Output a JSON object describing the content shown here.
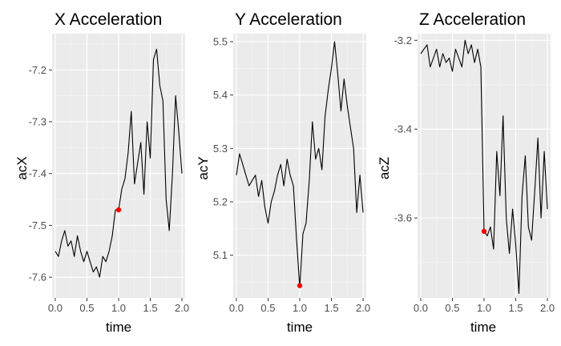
{
  "chart_data": [
    {
      "type": "line",
      "title": "X Acceleration",
      "xlabel": "time",
      "ylabel": "acX",
      "xlim": [
        -0.05,
        2.05
      ],
      "ylim": [
        -7.64,
        -7.13
      ],
      "xticks": [
        0.0,
        0.5,
        1.0,
        1.5,
        2.0
      ],
      "xtick_labels": [
        "0.0",
        "0.5",
        "1.0",
        "1.5",
        "2.0"
      ],
      "yticks": [
        -7.6,
        -7.5,
        -7.4,
        -7.3,
        -7.2
      ],
      "ytick_labels": [
        "-7.6",
        "-7.5",
        "-7.4",
        "-7.3",
        "-7.2"
      ],
      "grid": true,
      "line_color": "#000000",
      "highlight_color": "#ff0000",
      "x": [
        0.0,
        0.05,
        0.1,
        0.15,
        0.2,
        0.25,
        0.3,
        0.35,
        0.4,
        0.45,
        0.5,
        0.55,
        0.6,
        0.65,
        0.7,
        0.75,
        0.8,
        0.85,
        0.9,
        0.95,
        1.0,
        1.05,
        1.1,
        1.15,
        1.2,
        1.25,
        1.3,
        1.35,
        1.4,
        1.45,
        1.5,
        1.55,
        1.6,
        1.65,
        1.7,
        1.75,
        1.8,
        1.85,
        1.9,
        1.95,
        2.0
      ],
      "values": [
        -7.55,
        -7.56,
        -7.53,
        -7.51,
        -7.54,
        -7.53,
        -7.56,
        -7.52,
        -7.55,
        -7.57,
        -7.55,
        -7.57,
        -7.59,
        -7.58,
        -7.6,
        -7.56,
        -7.57,
        -7.55,
        -7.52,
        -7.47,
        -7.47,
        -7.43,
        -7.41,
        -7.36,
        -7.28,
        -7.42,
        -7.38,
        -7.34,
        -7.44,
        -7.3,
        -7.37,
        -7.18,
        -7.16,
        -7.23,
        -7.26,
        -7.45,
        -7.51,
        -7.4,
        -7.25,
        -7.32,
        -7.4
      ],
      "highlight": {
        "x": 1.0,
        "y": -7.47
      }
    },
    {
      "type": "line",
      "title": "Y Acceleration",
      "xlabel": "time",
      "ylabel": "acY",
      "xlim": [
        -0.05,
        2.05
      ],
      "ylim": [
        5.02,
        5.515
      ],
      "xticks": [
        0.0,
        0.5,
        1.0,
        1.5,
        2.0
      ],
      "xtick_labels": [
        "0.0",
        "0.5",
        "1.0",
        "1.5",
        "2.0"
      ],
      "yticks": [
        5.1,
        5.2,
        5.3,
        5.4,
        5.5
      ],
      "ytick_labels": [
        "5.1",
        "5.2",
        "5.3",
        "5.4",
        "5.5"
      ],
      "grid": true,
      "line_color": "#000000",
      "highlight_color": "#ff0000",
      "x": [
        0.0,
        0.05,
        0.1,
        0.15,
        0.2,
        0.25,
        0.3,
        0.35,
        0.4,
        0.45,
        0.5,
        0.55,
        0.6,
        0.65,
        0.7,
        0.75,
        0.8,
        0.85,
        0.9,
        0.95,
        1.0,
        1.05,
        1.1,
        1.15,
        1.2,
        1.25,
        1.3,
        1.35,
        1.4,
        1.45,
        1.5,
        1.55,
        1.6,
        1.65,
        1.7,
        1.75,
        1.8,
        1.85,
        1.9,
        1.95,
        2.0
      ],
      "values": [
        5.25,
        5.29,
        5.27,
        5.25,
        5.23,
        5.24,
        5.25,
        5.21,
        5.24,
        5.19,
        5.16,
        5.2,
        5.22,
        5.25,
        5.27,
        5.23,
        5.28,
        5.25,
        5.23,
        5.13,
        5.04,
        5.14,
        5.16,
        5.24,
        5.35,
        5.28,
        5.3,
        5.26,
        5.36,
        5.41,
        5.45,
        5.5,
        5.44,
        5.37,
        5.43,
        5.38,
        5.34,
        5.3,
        5.18,
        5.25,
        5.18
      ],
      "highlight": {
        "x": 1.0,
        "y": 5.043
      }
    },
    {
      "type": "line",
      "title": "Z Acceleration",
      "xlabel": "time",
      "ylabel": "acZ",
      "xlim": [
        -0.05,
        2.05
      ],
      "ylim": [
        -3.78,
        -3.185
      ],
      "xticks": [
        0.0,
        0.5,
        1.0,
        1.5,
        2.0
      ],
      "xtick_labels": [
        "0.0",
        "0.5",
        "1.0",
        "1.5",
        "2.0"
      ],
      "yticks": [
        -3.6,
        -3.4,
        -3.2
      ],
      "ytick_labels": [
        "-3.6",
        "-3.4",
        "-3.2"
      ],
      "grid": true,
      "line_color": "#000000",
      "highlight_color": "#ff0000",
      "x": [
        0.0,
        0.05,
        0.1,
        0.15,
        0.2,
        0.25,
        0.3,
        0.35,
        0.4,
        0.45,
        0.5,
        0.55,
        0.6,
        0.65,
        0.7,
        0.75,
        0.8,
        0.85,
        0.9,
        0.95,
        1.0,
        1.05,
        1.1,
        1.15,
        1.2,
        1.25,
        1.3,
        1.35,
        1.4,
        1.45,
        1.5,
        1.55,
        1.6,
        1.65,
        1.7,
        1.75,
        1.8,
        1.85,
        1.9,
        1.95,
        2.0
      ],
      "values": [
        -3.23,
        -3.22,
        -3.21,
        -3.26,
        -3.24,
        -3.22,
        -3.26,
        -3.23,
        -3.25,
        -3.24,
        -3.27,
        -3.22,
        -3.24,
        -3.26,
        -3.2,
        -3.23,
        -3.21,
        -3.25,
        -3.22,
        -3.26,
        -3.63,
        -3.64,
        -3.62,
        -3.67,
        -3.45,
        -3.55,
        -3.37,
        -3.6,
        -3.68,
        -3.58,
        -3.66,
        -3.77,
        -3.55,
        -3.46,
        -3.62,
        -3.65,
        -3.54,
        -3.42,
        -3.6,
        -3.45,
        -3.58
      ],
      "highlight": {
        "x": 1.0,
        "y": -3.63
      }
    }
  ]
}
